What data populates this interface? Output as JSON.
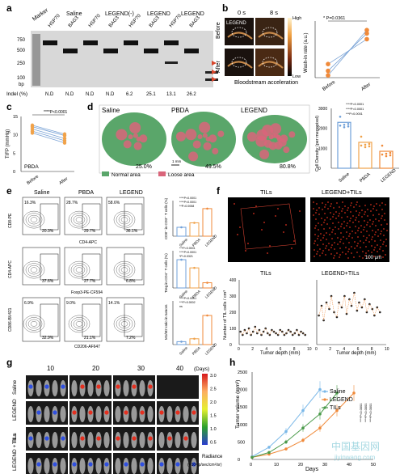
{
  "panels": {
    "a": {
      "letter": "a",
      "groups": [
        "Saline",
        "LEGEND(-)",
        "LEGEND",
        "LEGEND"
      ],
      "marker_label": "Marker",
      "lanes": [
        "HSP70",
        "BAG3",
        "HSP70",
        "BAG3",
        "HSP70",
        "BAG3",
        "HSP70",
        "BAG3"
      ],
      "bp_ticks": [
        "750",
        "500",
        "250",
        "100"
      ],
      "bp_unit": "bp",
      "indel_label": "Indel (%)",
      "indel_values": [
        "N.D",
        "N.D",
        "N.D",
        "N.D",
        "6.2",
        "25.1",
        "13.1",
        "26.2"
      ],
      "arrow_color": "#d9452b"
    },
    "b": {
      "letter": "b",
      "time0": "0 s",
      "time8": "8 s",
      "legend_label": "LEGEND",
      "row_before": "Before",
      "row_after": "After",
      "colorbar_high": "High",
      "colorbar_low": "Low",
      "caption": "Bloodstream acceleration",
      "ylabel": "Wash-in rate (a.u.)",
      "pvalue": "* P=0.0361",
      "xcats": [
        "Before",
        "After"
      ]
    },
    "c": {
      "letter": "c",
      "ylabel": "TIFP (mmHg)",
      "pvalue": "****P<0.0001",
      "inset": "PBDA",
      "xcats": [
        "Before",
        "After"
      ],
      "yticks": [
        "15",
        "10",
        "5",
        "0"
      ],
      "line_color": "#7aa3d6",
      "point_color": "#f0a24a"
    },
    "d": {
      "letter": "d",
      "titles": [
        "Saline",
        "PBDA",
        "LEGEND"
      ],
      "percents": [
        "25.0%",
        "49.5%",
        "80.8%"
      ],
      "scale": "1 mm",
      "legend_normal": "Normal area",
      "legend_loose": "Loose area",
      "normal_color": "#5aa66a",
      "loose_color": "#d9657a",
      "ylabel": "Cell Density (per megapixel)",
      "pvalues": [
        "****P<0.0001",
        "****P<0.0001",
        "***P=0.0001"
      ],
      "xcats": [
        "Saline",
        "PBDA",
        "LEGEND"
      ],
      "yticks": [
        "3000",
        "2000",
        "1000",
        "0"
      ]
    },
    "e": {
      "letter": "e",
      "cols": [
        "Saline",
        "PBDA",
        "LEGEND"
      ],
      "row1": {
        "ylabel": "CD8-PE",
        "xlabel": "CD4-APC",
        "tl": [
          "16.3%",
          "28.7%",
          "58.6%"
        ],
        "br": [
          "20.3%",
          "29.7%",
          "36.1%"
        ]
      },
      "row2": {
        "ylabel": "CD4-APC",
        "xlabel": "Foxp3-PE-CF594",
        "br": [
          "37.6%",
          "27.7%",
          "6.8%"
        ]
      },
      "row3": {
        "ylabel": "CD86-BV421",
        "xlabel": "CD206-AF647",
        "tl": [
          "6.9%",
          "9.0%",
          "14.1%"
        ],
        "br": [
          "32.9%",
          "21.1%",
          "7.2%"
        ]
      },
      "bar1_ylabel": "CD8⁺ in CD3⁺ T cells (%)",
      "bar2_ylabel": "Treg in CD4⁺ T cells (%)",
      "bar3_ylabel": "M1/M2 ratio in tumors",
      "bar_pvals1": [
        "****P<0.0001",
        "****P<0.0001",
        "**P=0.0058"
      ],
      "bar_pvals2": [
        "***P=0.0001",
        "****P<0.0001",
        "*P=0.0321"
      ],
      "bar_pvals3": [
        "****P<0.0001",
        "***P=0.0002",
        "ns"
      ],
      "xcats": [
        "Saline",
        "PBDA",
        "LEGEND"
      ],
      "bar_colors": [
        "#6f9fd8",
        "#f0a24a",
        "#f08a3a"
      ]
    },
    "f": {
      "letter": "f",
      "title_left": "TILs",
      "title_right": "LEGEND+TILs",
      "scale": "100 μm",
      "ylabel": "Number of TIL cells / cm³",
      "xlabel": "Tumor depth (mm)",
      "xticks": [
        "0",
        "2",
        "4",
        "6",
        "8",
        "10"
      ],
      "yticks": [
        "400",
        "300",
        "200",
        "100",
        "0"
      ]
    },
    "g": {
      "letter": "g",
      "days": [
        "10",
        "20",
        "30",
        "40"
      ],
      "days_unit": "(Days)",
      "rows": [
        "Saline",
        "LEGEND",
        "TILs",
        "LEGEND + TILs"
      ],
      "colorbar_ticks": [
        "3.0",
        "2.5",
        "2.0",
        "1.5",
        "1.0",
        "0.5"
      ],
      "radiance": "Radiance",
      "radiance_unit": "(×10⁶ p/sec/cm²/sr)"
    },
    "h": {
      "letter": "h",
      "ylabel": "Tumor volume (mm³)",
      "xlabel": "Days",
      "legend": [
        "Saline",
        "LEGEND",
        "TILs"
      ],
      "colors": [
        "#7ab8e8",
        "#f08a3a",
        "#4a9a4a"
      ],
      "sig": [
        "****P<0.0001",
        "****P<0.0001",
        "****P<0.0001"
      ],
      "watermark_cn": "中国基因网",
      "watermark_url": "jiyinwang.com"
    }
  },
  "chart_data": [
    {
      "type": "line",
      "panel": "b",
      "title": "",
      "xlabel": "",
      "ylabel": "Wash-in rate (a.u.)",
      "categories": [
        "Before",
        "After"
      ],
      "series": [
        {
          "values": [
            0.6,
            3.9
          ]
        },
        {
          "values": [
            1.2,
            3.4
          ]
        },
        {
          "values": [
            0.2,
            4.2
          ]
        }
      ],
      "ylim": [
        0,
        5
      ]
    },
    {
      "type": "line",
      "panel": "c",
      "title": "",
      "xlabel": "",
      "ylabel": "TIFP (mmHg)",
      "categories": [
        "Before",
        "After"
      ],
      "series": [
        {
          "values": [
            12.2,
            9.8
          ]
        },
        {
          "values": [
            11.6,
            9.0
          ]
        },
        {
          "values": [
            11.0,
            8.4
          ]
        },
        {
          "values": [
            10.5,
            7.8
          ]
        },
        {
          "values": [
            12.6,
            10.2
          ]
        }
      ],
      "ylim": [
        0,
        15
      ]
    },
    {
      "type": "bar",
      "panel": "d",
      "title": "",
      "xlabel": "",
      "ylabel": "Cell Density (per megapixel)",
      "categories": [
        "Saline",
        "PBDA",
        "LEGEND"
      ],
      "values": [
        2300,
        1300,
        850
      ],
      "ylim": [
        0,
        3000
      ]
    },
    {
      "type": "bar",
      "panel": "e1",
      "title": "",
      "xlabel": "",
      "ylabel": "CD8⁺ in CD3⁺ T cells (%)",
      "categories": [
        "Saline",
        "PBDA",
        "LEGEND"
      ],
      "values": [
        20,
        30,
        62
      ],
      "ylim": [
        0,
        80
      ]
    },
    {
      "type": "bar",
      "panel": "e2",
      "title": "",
      "xlabel": "",
      "ylabel": "Treg in CD4⁺ T cells (%)",
      "categories": [
        "Saline",
        "PBDA",
        "LEGEND"
      ],
      "values": [
        38,
        27,
        7
      ],
      "ylim": [
        0,
        50
      ]
    },
    {
      "type": "bar",
      "panel": "e3",
      "title": "",
      "xlabel": "",
      "ylabel": "M1/M2 ratio in tumors",
      "categories": [
        "Saline",
        "PBDA",
        "LEGEND"
      ],
      "values": [
        0.2,
        0.4,
        2.0
      ],
      "ylim": [
        0,
        3
      ]
    },
    {
      "type": "scatter",
      "panel": "f-TILs",
      "title": "TILs",
      "xlabel": "Tumor depth (mm)",
      "ylabel": "Number of TIL cells / cm³",
      "x": [
        0.2,
        0.5,
        0.8,
        1.1,
        1.4,
        1.7,
        2.0,
        2.3,
        2.6,
        2.9,
        3.2,
        3.5,
        3.8,
        4.1,
        4.4,
        4.7,
        5.0,
        5.3,
        5.6,
        5.9,
        6.2,
        6.5,
        6.8,
        7.1,
        7.4,
        7.7,
        8.0,
        8.3,
        8.6,
        8.9,
        9.2,
        9.5
      ],
      "y": [
        80,
        60,
        90,
        70,
        100,
        60,
        80,
        110,
        70,
        90,
        60,
        80,
        100,
        70,
        60,
        90,
        80,
        70,
        60,
        90,
        80,
        60,
        70,
        90,
        80,
        60,
        70,
        90,
        60,
        80,
        70,
        60
      ],
      "xlim": [
        0,
        10
      ],
      "ylim": [
        0,
        400
      ]
    },
    {
      "type": "scatter",
      "panel": "f-LEGEND+TILs",
      "title": "LEGEND+TILs",
      "xlabel": "Tumor depth (mm)",
      "ylabel": "",
      "x": [
        0.3,
        0.7,
        1.0,
        1.4,
        1.8,
        2.1,
        2.5,
        2.9,
        3.2,
        3.6,
        4.0,
        4.3,
        4.7,
        5.0,
        5.4,
        5.8,
        6.1,
        6.5,
        6.9,
        7.2,
        7.6,
        8.0,
        8.3,
        8.7,
        9.1
      ],
      "y": [
        180,
        240,
        150,
        260,
        220,
        300,
        200,
        170,
        260,
        230,
        300,
        190,
        280,
        240,
        320,
        210,
        260,
        230,
        280,
        200,
        250,
        220,
        180,
        230,
        200
      ],
      "xlim": [
        0,
        10
      ],
      "ylim": [
        0,
        400
      ]
    },
    {
      "type": "line",
      "panel": "h",
      "title": "",
      "xlabel": "Days",
      "ylabel": "Tumor volume (mm³)",
      "series": [
        {
          "name": "Saline",
          "x": [
            0,
            7,
            14,
            21,
            28
          ],
          "y": [
            80,
            350,
            800,
            1400,
            2000
          ]
        },
        {
          "name": "LEGEND",
          "x": [
            0,
            7,
            14,
            21,
            28,
            35,
            42
          ],
          "y": [
            60,
            150,
            300,
            550,
            900,
            1400,
            1900
          ]
        },
        {
          "name": "TILs",
          "x": [
            0,
            7,
            14,
            21,
            28,
            35
          ],
          "y": [
            60,
            200,
            500,
            900,
            1300,
            1900
          ]
        }
      ],
      "xlim": [
        0,
        50
      ],
      "ylim": [
        0,
        2500
      ]
    }
  ]
}
